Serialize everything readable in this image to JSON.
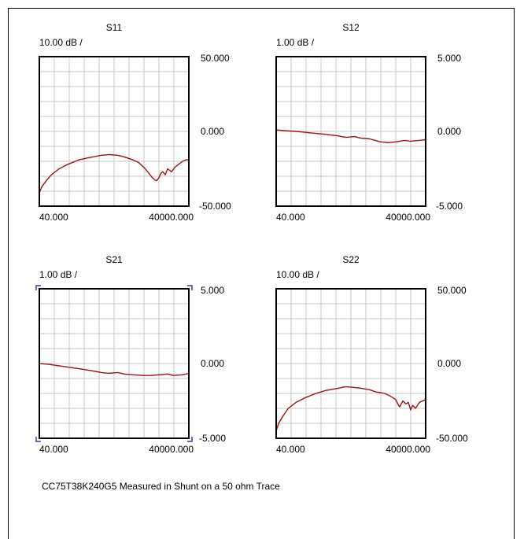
{
  "colors": {
    "trace": "#a01010",
    "grid": "#c4c4c4",
    "border": "#000000",
    "corner_marker": "#3a3aa0"
  },
  "footer": {
    "text": "CC75T38K240G5 Measured in Shunt on a 50 ohm Trace"
  },
  "chart_data": [
    {
      "type": "line",
      "title": "S11",
      "scale_label": "10.00 dB /",
      "x_tick_labels": [
        "40.000",
        "40000.000"
      ],
      "y_tick_labels": [
        "50.000",
        "0.000",
        "-50.000"
      ],
      "xlim": [
        40,
        40000
      ],
      "ylim": [
        -50,
        50
      ],
      "x_scale": "log",
      "grid": true,
      "xlabel": "",
      "ylabel": "",
      "series": [
        {
          "x": [
            40,
            45,
            55,
            70,
            100,
            150,
            250,
            400,
            700,
            1000,
            1500,
            2000,
            3000,
            4000,
            5000,
            6000,
            7000,
            8000,
            9000,
            10000,
            11000,
            12000,
            13500,
            15000,
            18000,
            21000,
            25000,
            30000,
            35000,
            40000
          ],
          "values": [
            -41,
            -37,
            -33,
            -29,
            -25,
            -22,
            -19,
            -17.5,
            -16,
            -15.5,
            -16,
            -17,
            -19,
            -21,
            -24,
            -27,
            -30,
            -32,
            -33,
            -31,
            -28,
            -27,
            -29,
            -25,
            -27,
            -24,
            -22,
            -20,
            -19,
            -19
          ]
        }
      ]
    },
    {
      "type": "line",
      "title": "S12",
      "scale_label": "1.00 dB /",
      "x_tick_labels": [
        "40.000",
        "40000.000"
      ],
      "y_tick_labels": [
        "5.000",
        "0.000",
        "-5.000"
      ],
      "xlim": [
        40,
        40000
      ],
      "ylim": [
        -5,
        5
      ],
      "x_scale": "log",
      "grid": true,
      "xlabel": "",
      "ylabel": "",
      "series": [
        {
          "x": [
            40,
            60,
            100,
            200,
            400,
            700,
            1000,
            1500,
            2000,
            3000,
            5000,
            7000,
            10000,
            15000,
            20000,
            30000,
            40000
          ],
          "values": [
            0.1,
            0.05,
            0.0,
            -0.1,
            -0.2,
            -0.3,
            -0.4,
            -0.35,
            -0.45,
            -0.5,
            -0.7,
            -0.75,
            -0.7,
            -0.6,
            -0.65,
            -0.6,
            -0.55
          ]
        }
      ]
    },
    {
      "type": "line",
      "title": "S21",
      "scale_label": "1.00 dB /",
      "x_tick_labels": [
        "40.000",
        "40000.000"
      ],
      "y_tick_labels": [
        "5.000",
        "0.000",
        "-5.000"
      ],
      "xlim": [
        40,
        40000
      ],
      "ylim": [
        -5,
        5
      ],
      "x_scale": "log",
      "grid": true,
      "xlabel": "",
      "ylabel": "",
      "series": [
        {
          "x": [
            40,
            60,
            100,
            200,
            400,
            700,
            1000,
            1500,
            2000,
            3000,
            5000,
            7000,
            10000,
            15000,
            20000,
            30000,
            40000
          ],
          "values": [
            0.0,
            -0.05,
            -0.15,
            -0.3,
            -0.45,
            -0.6,
            -0.65,
            -0.6,
            -0.7,
            -0.75,
            -0.8,
            -0.8,
            -0.75,
            -0.7,
            -0.8,
            -0.75,
            -0.65
          ]
        }
      ]
    },
    {
      "type": "line",
      "title": "S22",
      "scale_label": "10.00 dB /",
      "x_tick_labels": [
        "40.000",
        "40000.000"
      ],
      "y_tick_labels": [
        "50.000",
        "0.000",
        "-50.000"
      ],
      "xlim": [
        40,
        40000
      ],
      "ylim": [
        -50,
        50
      ],
      "x_scale": "log",
      "grid": true,
      "xlabel": "",
      "ylabel": "",
      "series": [
        {
          "x": [
            40,
            45,
            55,
            70,
            100,
            150,
            250,
            400,
            700,
            1000,
            1500,
            2000,
            3000,
            4000,
            5000,
            6000,
            7000,
            8000,
            10000,
            11000,
            12000,
            14000,
            16000,
            18000,
            20000,
            22000,
            25000,
            30000,
            35000,
            40000
          ],
          "values": [
            -45,
            -40,
            -35,
            -30,
            -26,
            -23,
            -20,
            -18,
            -16.5,
            -15.5,
            -16,
            -16.5,
            -17.5,
            -19,
            -19.5,
            -20,
            -21,
            -22,
            -24,
            -27,
            -29,
            -25,
            -27,
            -26,
            -31,
            -28,
            -30,
            -26,
            -25,
            -24
          ]
        }
      ]
    }
  ]
}
